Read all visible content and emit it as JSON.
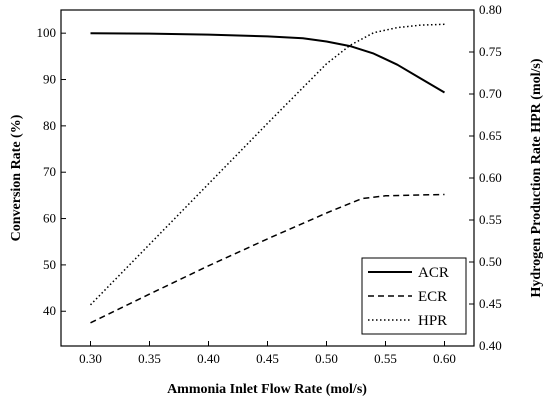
{
  "chart_data": {
    "type": "line",
    "title": "",
    "xlabel": "Ammonia Inlet Flow Rate (mol/s)",
    "ylabel": "Conversion Rate (%)",
    "y2label": "Hydrogen Production Rate HPR (mol/s)",
    "xlim": [
      0.275,
      0.625
    ],
    "ylim": [
      32.5,
      105
    ],
    "y2lim": [
      0.4,
      0.8
    ],
    "xticks": [
      0.3,
      0.35,
      0.4,
      0.45,
      0.5,
      0.55,
      0.6
    ],
    "xtick_labels": [
      "0.30",
      "0.35",
      "0.40",
      "0.45",
      "0.50",
      "0.55",
      "0.60"
    ],
    "yticks": [
      40,
      50,
      60,
      70,
      80,
      90,
      100
    ],
    "ytick_labels": [
      "40",
      "50",
      "60",
      "70",
      "80",
      "90",
      "100"
    ],
    "y2ticks": [
      0.4,
      0.45,
      0.5,
      0.55,
      0.6,
      0.65,
      0.7,
      0.75,
      0.8
    ],
    "y2tick_labels": [
      "0.40",
      "0.45",
      "0.50",
      "0.55",
      "0.60",
      "0.65",
      "0.70",
      "0.75",
      "0.80"
    ],
    "grid": false,
    "legend_position": "bottom-right",
    "series": [
      {
        "name": "ACR",
        "axis": "left",
        "style": "solid",
        "x": [
          0.3,
          0.35,
          0.4,
          0.45,
          0.48,
          0.5,
          0.52,
          0.54,
          0.56,
          0.58,
          0.6
        ],
        "y": [
          100.0,
          99.9,
          99.7,
          99.3,
          98.9,
          98.2,
          97.2,
          95.6,
          93.2,
          90.2,
          87.2
        ]
      },
      {
        "name": "ECR",
        "axis": "left",
        "style": "dashed",
        "x": [
          0.3,
          0.35,
          0.4,
          0.45,
          0.5,
          0.53,
          0.55,
          0.58,
          0.6
        ],
        "y": [
          37.5,
          43.7,
          49.8,
          55.6,
          61.2,
          64.3,
          64.9,
          65.1,
          65.2
        ]
      },
      {
        "name": "HPR",
        "axis": "right",
        "style": "dotted",
        "x": [
          0.3,
          0.35,
          0.4,
          0.45,
          0.5,
          0.52,
          0.54,
          0.56,
          0.58,
          0.6
        ],
        "y": [
          0.449,
          0.521,
          0.593,
          0.665,
          0.736,
          0.758,
          0.773,
          0.779,
          0.782,
          0.783
        ]
      }
    ]
  }
}
